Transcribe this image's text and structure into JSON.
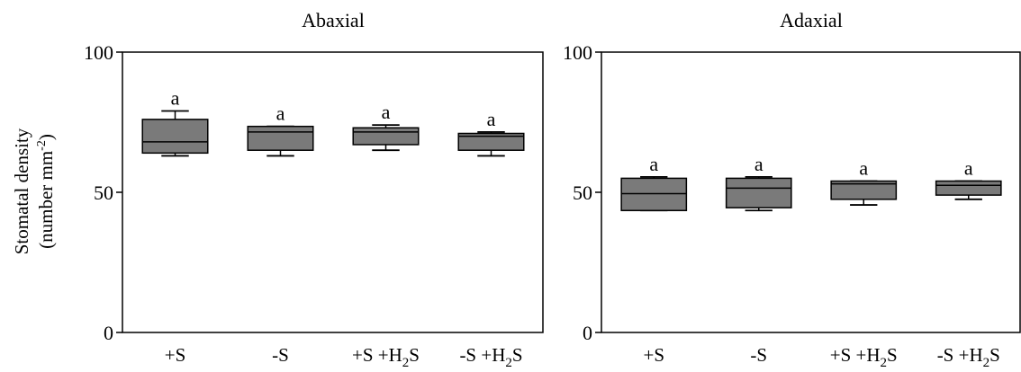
{
  "chart_data": [
    {
      "type": "box",
      "title": "Abaxial",
      "ylabel": "Stomatal density",
      "ylabel_unit": "(number mm-2)",
      "ylim": [
        0,
        100
      ],
      "yticks": [
        "0",
        "50",
        "100"
      ],
      "categories": [
        "+S",
        "-S",
        "+S +H2S",
        "-S +H2S"
      ],
      "boxes": [
        {
          "min": 63,
          "q1": 64,
          "median": 68,
          "q3": 76,
          "max": 79
        },
        {
          "min": 63,
          "q1": 65,
          "median": 71.5,
          "q3": 73.5,
          "max": 73.5
        },
        {
          "min": 65,
          "q1": 67,
          "median": 71.5,
          "q3": 73,
          "max": 74
        },
        {
          "min": 63,
          "q1": 65,
          "median": 70,
          "q3": 71,
          "max": 71.5
        }
      ],
      "significance": [
        "a",
        "a",
        "a",
        "a"
      ],
      "grid": false
    },
    {
      "type": "box",
      "title": "Adaxial",
      "ylim": [
        0,
        100
      ],
      "yticks": [
        "0",
        "50",
        "100"
      ],
      "categories": [
        "+S",
        "-S",
        "+S +H2S",
        "-S +H2S"
      ],
      "boxes": [
        {
          "min": 43.5,
          "q1": 43.5,
          "median": 49.5,
          "q3": 55,
          "max": 55.5
        },
        {
          "min": 43.5,
          "q1": 44.5,
          "median": 51.5,
          "q3": 55,
          "max": 55.5
        },
        {
          "min": 45.5,
          "q1": 47.5,
          "median": 53,
          "q3": 54,
          "max": 54
        },
        {
          "min": 47.5,
          "q1": 49,
          "median": 52.5,
          "q3": 54,
          "max": 54
        }
      ],
      "significance": [
        "a",
        "a",
        "a",
        "a"
      ],
      "grid": false
    }
  ],
  "colors": {
    "box_fill": "#7a7a7a",
    "line": "#000000"
  }
}
